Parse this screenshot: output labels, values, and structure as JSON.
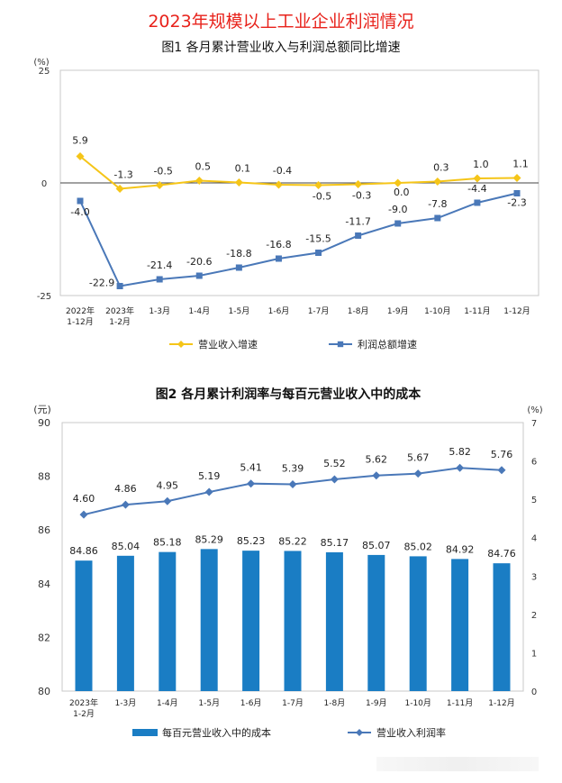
{
  "page_title": "2023年规模以上工业企业利润情况",
  "chart_data": [
    {
      "type": "line",
      "title": "图1 各月累计营业收入与利润总额同比增速",
      "ylabel": "(%)",
      "ylim": [
        -25,
        25
      ],
      "y_ticks": [
        "25",
        "0",
        "-25"
      ],
      "categories": [
        "2022年\n1-12月",
        "2023年\n1-2月",
        "1-3月",
        "1-4月",
        "1-5月",
        "1-6月",
        "1-7月",
        "1-8月",
        "1-9月",
        "1-10月",
        "1-11月",
        "1-12月"
      ],
      "series": [
        {
          "name": "营业收入增速",
          "color": "#f5c518",
          "marker": "diamond",
          "values": [
            5.9,
            -1.3,
            -0.5,
            0.5,
            0.1,
            -0.4,
            -0.5,
            -0.3,
            0.0,
            0.3,
            1.0,
            1.1
          ],
          "labels": [
            "5.9",
            "-1.3",
            "-0.5",
            "0.5",
            "0.1",
            "-0.4",
            "-0.5",
            "-0.3",
            "0.0",
            "0.3",
            "1.0",
            "1.1"
          ]
        },
        {
          "name": "利润总额增速",
          "color": "#4a78b8",
          "marker": "square",
          "values": [
            -4.0,
            -22.9,
            -21.4,
            -20.6,
            -18.8,
            -16.8,
            -15.5,
            -11.7,
            -9.0,
            -7.8,
            -4.4,
            -2.3
          ],
          "labels": [
            "-4.0",
            "-22.9",
            "-21.4",
            "-20.6",
            "-18.8",
            "-16.8",
            "-15.5",
            "-11.7",
            "-9.0",
            "-7.8",
            "-4.4",
            "-2.3"
          ]
        }
      ],
      "legend_position": "bottom",
      "grid": false
    },
    {
      "type": "bar",
      "title": "图2 各月累计利润率与每百元营业收入中的成本",
      "ylabel_left": "(元)",
      "ylabel_right": "(%)",
      "ylim_left": [
        80,
        90
      ],
      "ylim_right": [
        0,
        7
      ],
      "y_ticks_left": [
        "90",
        "88",
        "86",
        "84",
        "82",
        "80"
      ],
      "y_ticks_right": [
        "7",
        "6",
        "5",
        "4",
        "3",
        "2",
        "1",
        "0"
      ],
      "categories": [
        "2023年\n1-2月",
        "1-3月",
        "1-4月",
        "1-5月",
        "1-6月",
        "1-7月",
        "1-8月",
        "1-9月",
        "1-10月",
        "1-11月",
        "1-12月"
      ],
      "series": [
        {
          "name": "每百元营业收入中的成本",
          "type": "bar",
          "axis": "left",
          "color": "#1a7dc4",
          "values": [
            84.86,
            85.04,
            85.18,
            85.29,
            85.23,
            85.22,
            85.17,
            85.07,
            85.02,
            84.92,
            84.76
          ],
          "labels": [
            "84.86",
            "85.04",
            "85.18",
            "85.29",
            "85.23",
            "85.22",
            "85.17",
            "85.07",
            "85.02",
            "84.92",
            "84.76"
          ]
        },
        {
          "name": "营业收入利润率",
          "type": "line",
          "axis": "right",
          "color": "#4a78b8",
          "marker": "diamond",
          "values": [
            4.6,
            4.86,
            4.95,
            5.19,
            5.41,
            5.39,
            5.52,
            5.62,
            5.67,
            5.82,
            5.76
          ],
          "labels": [
            "4.60",
            "4.86",
            "4.95",
            "5.19",
            "5.41",
            "5.39",
            "5.52",
            "5.62",
            "5.67",
            "5.82",
            "5.76"
          ]
        }
      ],
      "legend_position": "bottom",
      "grid": false
    }
  ]
}
